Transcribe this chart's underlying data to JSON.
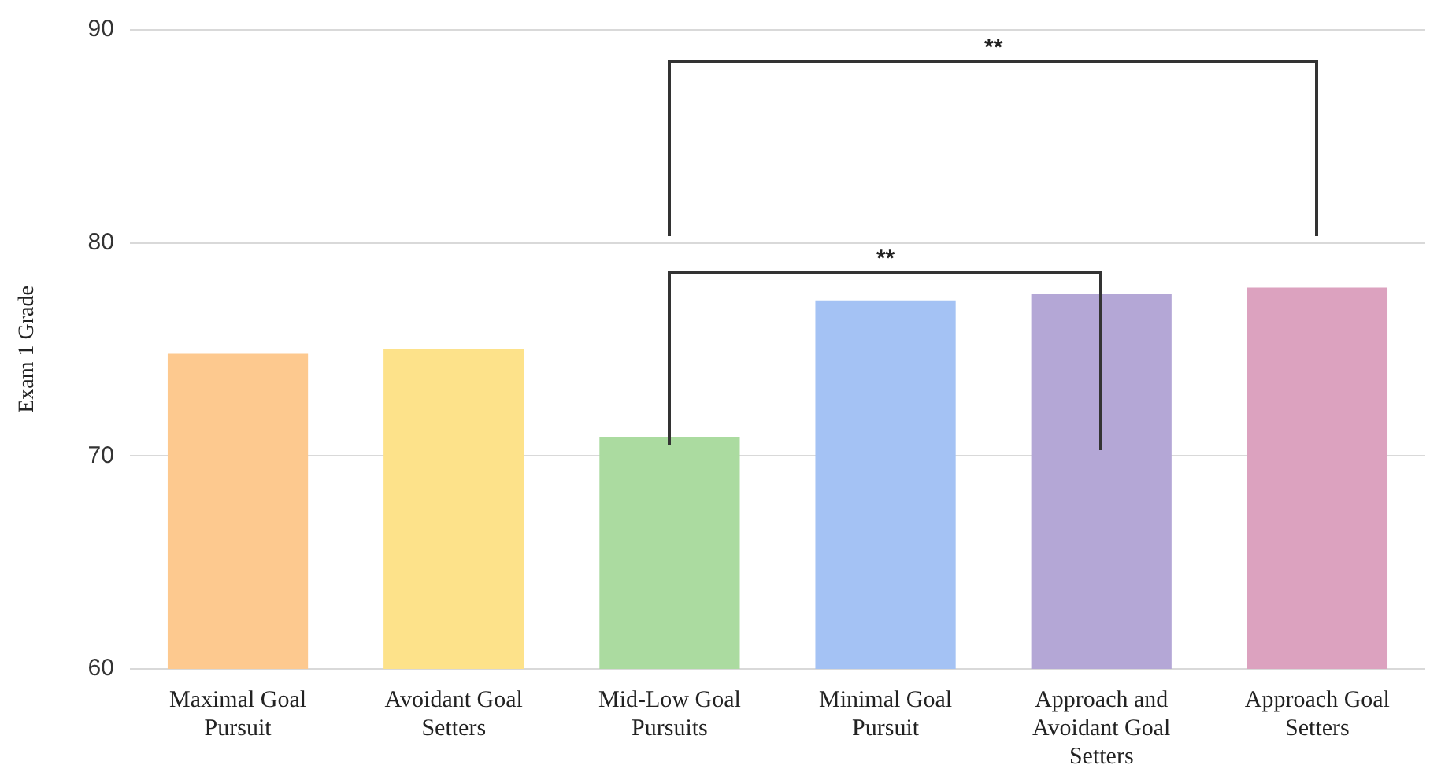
{
  "chart_data": {
    "type": "bar",
    "ylabel": "Exam 1 Grade",
    "categories": [
      "Maximal Goal Pursuit",
      "Avoidant Goal Setters",
      "Mid-Low Goal Pursuits",
      "Minimal Goal Pursuit",
      "Approach and Avoidant Goal Setters",
      "Approach Goal Setters"
    ],
    "values": [
      74.8,
      75.0,
      70.9,
      77.3,
      77.6,
      77.9
    ],
    "colors": [
      "#fdc98f",
      "#fde28a",
      "#abdba0",
      "#a4c2f4",
      "#b4a7d6",
      "#dca2bf"
    ],
    "ylim": [
      60,
      90
    ],
    "yticks": [
      60,
      70,
      80,
      90
    ],
    "grid": "y",
    "annotations": [
      "**",
      "**"
    ]
  }
}
